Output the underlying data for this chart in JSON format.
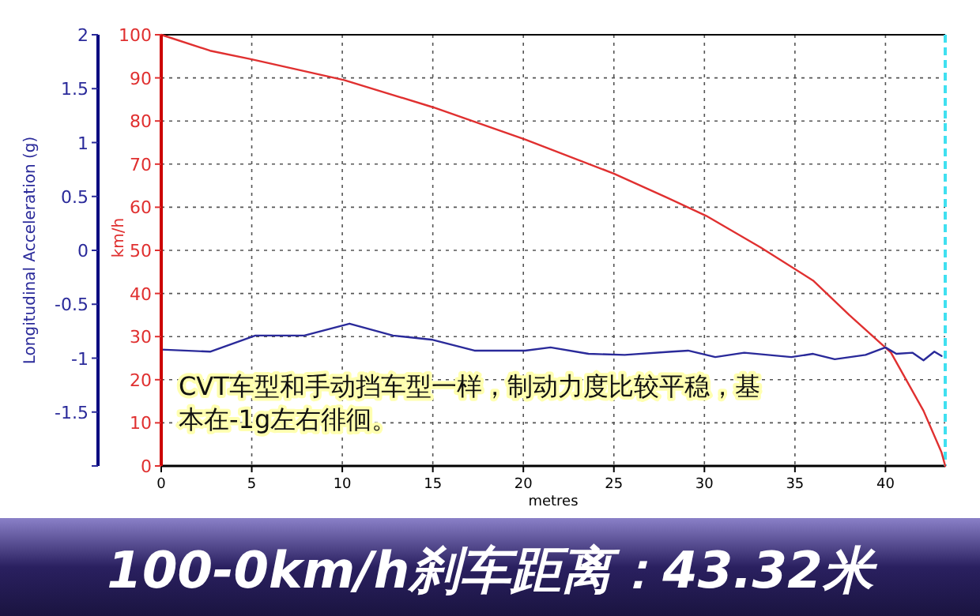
{
  "chart_data": {
    "type": "line",
    "title": "100-0km/h刹车距离：43.32米",
    "xlabel": "metres",
    "ylabel": "km/h",
    "y2label": "Longitudinal Acceleration (g)",
    "annotations": [
      "CVT车型和手动挡车型一样，制动力度比较平稳，基本在-1g左右徘徊。"
    ],
    "xlim": [
      0,
      43.3
    ],
    "xticks": [
      0,
      5,
      10,
      15,
      20,
      25,
      30,
      35,
      40
    ],
    "ylim": [
      0,
      100
    ],
    "yticks": [
      0,
      10,
      20,
      30,
      40,
      50,
      60,
      70,
      80,
      90,
      100
    ],
    "y2lim": [
      -2,
      2
    ],
    "y2ticks": [
      {
        "value": -2,
        "label": null
      },
      -1.5,
      -1,
      -0.5,
      0,
      0.5,
      1,
      1.5,
      2
    ],
    "grid": true,
    "marker": "none",
    "line_style": "solid",
    "ref_lines": [
      {
        "axis": "x",
        "value": 43.3,
        "color": "#40e0f0",
        "line_style": "dashed"
      }
    ],
    "series": [
      {
        "color": "#e03030",
        "x": [
          0,
          2.7,
          5,
          10.1,
          15,
          20.1,
          25,
          27.9,
          30.1,
          33.1,
          36,
          38,
          40.3,
          42.1,
          43.1,
          43.3
        ],
        "values": [
          100,
          96.3,
          94.3,
          89.5,
          83.2,
          75.7,
          67.8,
          62.3,
          58,
          50.7,
          43,
          35,
          26.3,
          12.8,
          3.1,
          0
        ]
      },
      {
        "color": "#2a2a9a",
        "axis": "y2",
        "x": [
          0,
          2.7,
          5.2,
          7.9,
          10.4,
          12.8,
          15,
          17.3,
          20.1,
          21.5,
          23.6,
          25.6,
          28.2,
          29.1,
          30.6,
          32.2,
          34.8,
          36,
          37.2,
          38.9,
          40,
          40.6,
          41.5,
          42.1,
          42.7,
          43.1
        ],
        "values": [
          -0.92,
          -0.94,
          -0.79,
          -0.79,
          -0.68,
          -0.79,
          -0.83,
          -0.93,
          -0.93,
          -0.9,
          -0.96,
          -0.97,
          -0.94,
          -0.93,
          -0.99,
          -0.95,
          -0.99,
          -0.96,
          -1.01,
          -0.97,
          -0.9,
          -0.96,
          -0.95,
          -1.02,
          -0.94,
          -0.98
        ]
      }
    ]
  }
}
